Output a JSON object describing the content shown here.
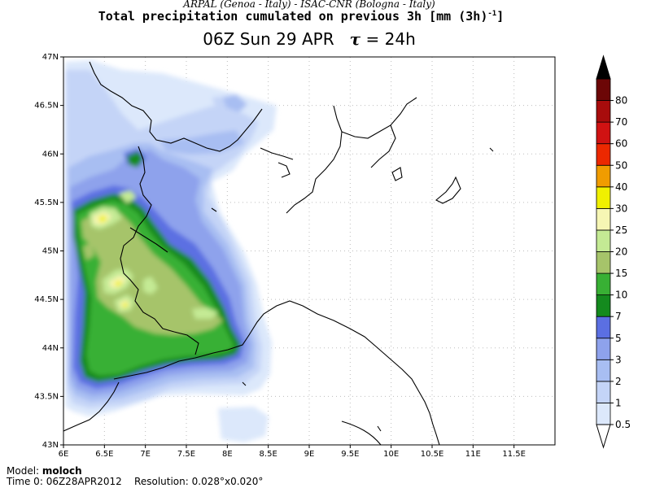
{
  "header": {
    "source_line": "ARPAL (Genoa - Italy)  -  ISAC-CNR (Bologna - Italy)",
    "product_title": "Total precipitation cumulated on previous 3h [mm (3h)",
    "product_title_sup": "-1",
    "product_title_end": "]",
    "valid_time": "06Z Sun 29 APR",
    "lead_symbol": "τ",
    "lead_value": "= 24h"
  },
  "map": {
    "lat_labels": [
      "47N",
      "46.5N",
      "46N",
      "45.5N",
      "45N",
      "44.5N",
      "44N",
      "43.5N",
      "43N"
    ],
    "lon_labels": [
      "6E",
      "6.5E",
      "7E",
      "7.5E",
      "8E",
      "8.5E",
      "9E",
      "9.5E",
      "10E",
      "10.5E",
      "11E",
      "11.5E"
    ],
    "lat_range": [
      43,
      47
    ],
    "lon_range": [
      6,
      12
    ],
    "grid": "dotted"
  },
  "colorbar": {
    "unit": "mm (3h)-1",
    "levels": [
      "0.5",
      "1",
      "2",
      "3",
      "5",
      "7",
      "10",
      "15",
      "20",
      "25",
      "30",
      "40",
      "50",
      "60",
      "70",
      "80"
    ],
    "colors": [
      "#dce8fb",
      "#c4d4f7",
      "#a8bef2",
      "#8ea2ec",
      "#5b6fe2",
      "#148a1e",
      "#38b034",
      "#a6c46a",
      "#c4ea94",
      "#f6f6b4",
      "#f0f000",
      "#f09c00",
      "#ec2800",
      "#d01212",
      "#a80c0c",
      "#6c0606"
    ],
    "top_color": "#000000",
    "bottom_color": "#ffffff"
  },
  "footer": {
    "model_label": "Model:",
    "model_name": "moloch",
    "time_label": "Time 0:",
    "time_value": "06Z28APR2012",
    "resolution_label": "Resolution:",
    "resolution_value": "0.028°x0.020°"
  }
}
